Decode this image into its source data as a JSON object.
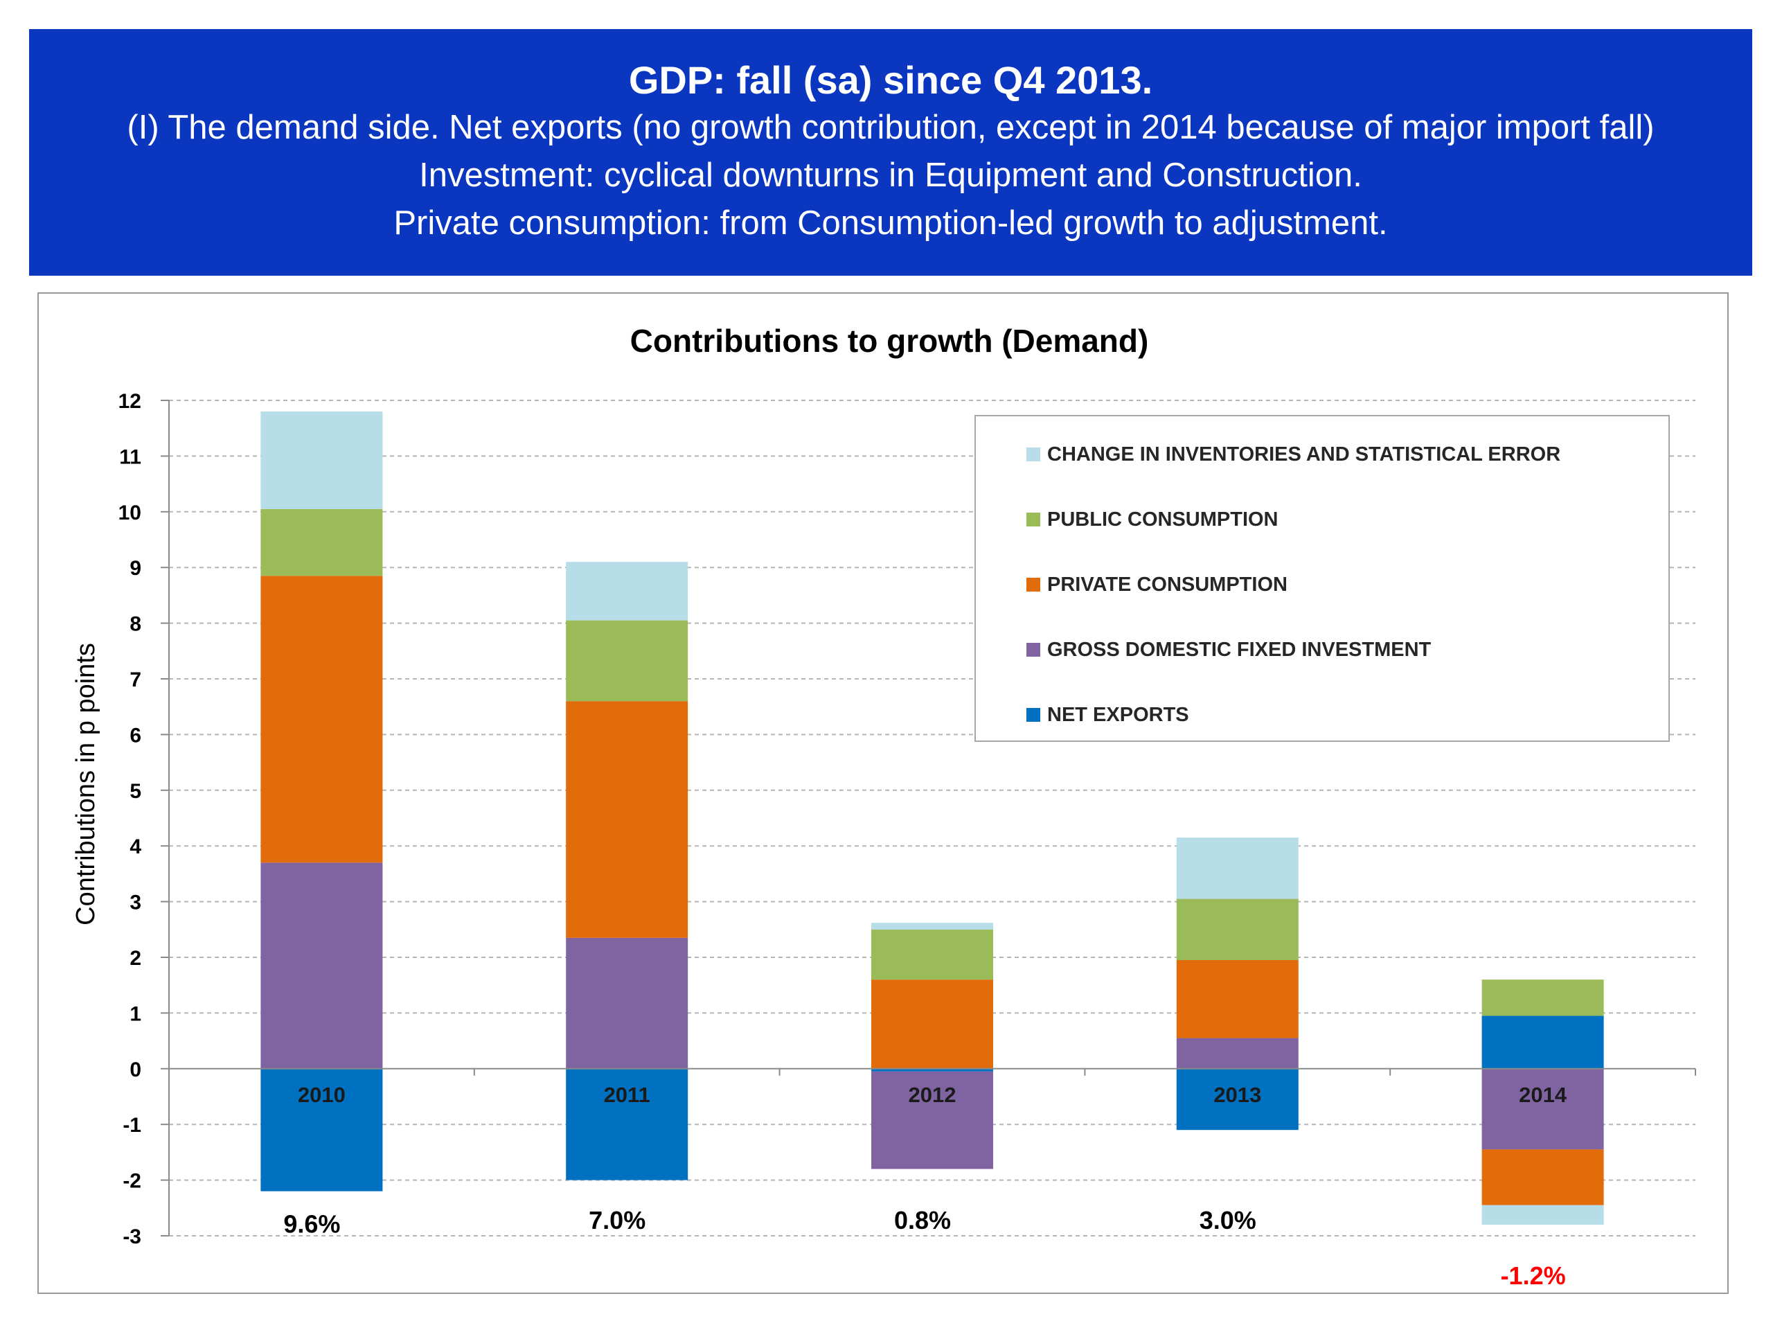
{
  "header": {
    "title": "GDP: fall (sa) since Q4 2013.",
    "lines": [
      "(I) The demand side. Net exports (no growth contribution, except in 2014 because of major import fall)",
      "Investment: cyclical downturns in Equipment and Construction.",
      "Private consumption: from Consumption-led growth to adjustment."
    ]
  },
  "chart_data": {
    "type": "bar",
    "stacked": true,
    "title": "Contributions to growth (Demand)",
    "ylabel": "Contributions in p points",
    "xlabel": "",
    "ylim": [
      -3,
      12
    ],
    "yticks": [
      -3,
      -2,
      -1,
      0,
      1,
      2,
      3,
      4,
      5,
      6,
      7,
      8,
      9,
      10,
      11,
      12
    ],
    "grid": true,
    "legend_position": "top-right",
    "categories": [
      "2010",
      "2011",
      "2012",
      "2013",
      "2014"
    ],
    "series": [
      {
        "name": "NET EXPORTS",
        "color": "#0070c0",
        "values": [
          -2.2,
          -2.0,
          -0.05,
          -1.1,
          0.95
        ]
      },
      {
        "name": "GROSS DOMESTIC FIXED INVESTMENT",
        "color": "#8064a2",
        "values": [
          3.7,
          2.35,
          -1.75,
          0.55,
          -1.45
        ]
      },
      {
        "name": "PRIVATE CONSUMPTION",
        "color": "#e36c0a",
        "values": [
          5.15,
          4.25,
          1.6,
          1.4,
          -1.0
        ]
      },
      {
        "name": "PUBLIC CONSUMPTION",
        "color": "#9bbb59",
        "values": [
          1.2,
          1.45,
          0.9,
          1.1,
          0.65
        ]
      },
      {
        "name": "CHANGE IN INVENTORIES AND STATISTICAL ERROR",
        "color": "#b7dde8",
        "values": [
          1.75,
          1.05,
          0.12,
          1.1,
          -0.35
        ]
      }
    ],
    "legend_order": [
      4,
      3,
      2,
      1,
      0
    ],
    "totals": [
      {
        "label": "9.6%",
        "color": "#000000"
      },
      {
        "label": "7.0%",
        "color": "#000000"
      },
      {
        "label": "0.8%",
        "color": "#000000"
      },
      {
        "label": "3.0%",
        "color": "#000000"
      },
      {
        "label": "-1.2%",
        "color": "#ff0000"
      }
    ]
  }
}
